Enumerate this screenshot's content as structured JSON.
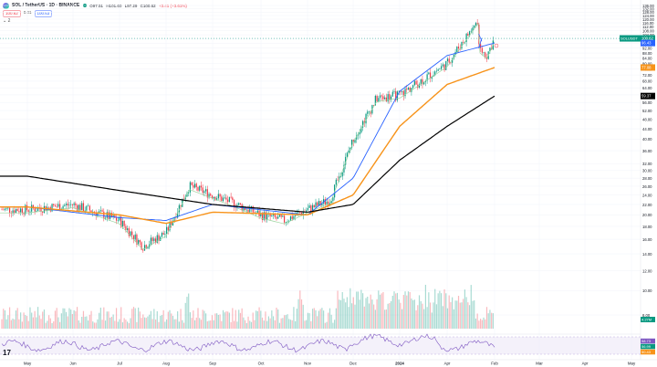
{
  "header": {
    "symbol_title": "SOL / TetherUS · 1D · BINANCE",
    "ohlc": [
      "O97.51",
      "H101.60",
      "L97.29",
      "C100.62",
      "+3.41 (+3.61%)"
    ],
    "sell_price": "100.62",
    "spread": "0.01",
    "buy_price": "100.63",
    "collapse_label": "⌄ 2"
  },
  "colors": {
    "up": "#089981",
    "down": "#f23645",
    "ema_short": "#9cd4a0",
    "ema_mid": "#2962ff",
    "ema_long": "#f7931a",
    "ema_200": "#000000",
    "wedge": "#2962ff",
    "rsi": "#7e57c2",
    "rsi_band": "#ede7f6"
  },
  "icons": {
    "tv_logo": "tradingview-logo-icon",
    "settings": "gear-icon"
  },
  "chart_data": {
    "type": "candlestick",
    "title": "SOL / TetherUS · 1D · BINANCE",
    "y_axis": {
      "scale": "log",
      "ticks": [
        8.0,
        10.0,
        12.0,
        14.0,
        16.0,
        18.0,
        20.0,
        22.0,
        24.0,
        26.0,
        28.0,
        30.0,
        32.0,
        36.0,
        40.0,
        44.0,
        48.0,
        52.0,
        56.0,
        60.0,
        64.0,
        68.0,
        72.0,
        76.0,
        80.0,
        84.0,
        88.0,
        92.0,
        96.0,
        100.0,
        104.0,
        108.0,
        112.0,
        116.0,
        120.0,
        124.0,
        128.0,
        132.0,
        136.0
      ],
      "tick_labels": [
        "8.00",
        "10.00",
        "12.00",
        "14.00",
        "16.00",
        "18.00",
        "20.00",
        "22.00",
        "24.00",
        "26.00",
        "28.00",
        "30.00",
        "32.00",
        "36.00",
        "40.00",
        "44.00",
        "48.00",
        "52.00",
        "56.00",
        "60.00",
        "64.00",
        "68.00",
        "72.00",
        "76.00",
        "80.00",
        "84.00",
        "88.00",
        "92.00",
        "96.00",
        "100.00",
        "104.00",
        "108.00",
        "112.00",
        "116.00",
        "120.00",
        "124.00",
        "128.00",
        "132.00",
        "136.00"
      ],
      "range": [
        8,
        136
      ]
    },
    "x_axis": {
      "tick_labels": [
        "Apr",
        "May",
        "Jun",
        "Jul",
        "Aug",
        "Sep",
        "Oct",
        "Nov",
        "Dec",
        "2024",
        "Feb",
        "Mar",
        "Apr",
        "May"
      ]
    },
    "price_labels": [
      {
        "name": "SOLUSDT",
        "value": "100.62",
        "sub": "11:59:19",
        "color": "#089981"
      },
      {
        "name": "ema_mid",
        "value": "96.43",
        "color": "#2962ff"
      },
      {
        "name": "ema_short",
        "value": "92.??",
        "color": "#9cd4a0"
      },
      {
        "name": "ema_long",
        "value": "77.08",
        "color": "#f7931a"
      },
      {
        "name": "ema_200",
        "value": "59.37",
        "color": "#000000"
      }
    ],
    "series_price_anchors": {
      "description": "approximate daily close path",
      "points": [
        [
          "Apr",
          21
        ],
        [
          "May",
          22
        ],
        [
          "Jun",
          19
        ],
        [
          "Jun15",
          15
        ],
        [
          "Jul",
          17
        ],
        [
          "Jul15",
          26
        ],
        [
          "Aug",
          24
        ],
        [
          "Aug15",
          22
        ],
        [
          "Sep",
          20
        ],
        [
          "Sep15",
          19
        ],
        [
          "Oct",
          21
        ],
        [
          "Oct15",
          23
        ],
        [
          "Nov",
          40
        ],
        [
          "Nov15",
          58
        ],
        [
          "Dec",
          60
        ],
        [
          "Dec15",
          80
        ],
        [
          "Dec25",
          120
        ],
        [
          "2024",
          104
        ],
        [
          "Jan15",
          98
        ],
        [
          "Jan25",
          86
        ],
        [
          "Feb",
          100.62
        ]
      ]
    },
    "ema_200_anchors": [
      [
        "Apr",
        28.5
      ],
      [
        "Jun",
        25
      ],
      [
        "Aug",
        22
      ],
      [
        "Oct",
        20.5
      ],
      [
        "Nov",
        22
      ],
      [
        "Dec",
        33
      ],
      [
        "2024",
        45
      ],
      [
        "Feb",
        59.37
      ]
    ],
    "ema_long_anchors": [
      [
        "Apr",
        21.5
      ],
      [
        "Jun",
        20
      ],
      [
        "Jul",
        18.5
      ],
      [
        "Aug",
        20.5
      ],
      [
        "Oct",
        20
      ],
      [
        "Nov",
        24
      ],
      [
        "Dec",
        45
      ],
      [
        "2024",
        66
      ],
      [
        "Feb",
        77.08
      ]
    ],
    "ema_mid_anchors": [
      [
        "Apr",
        21.5
      ],
      [
        "Jun",
        19.5
      ],
      [
        "Jul",
        19
      ],
      [
        "Aug",
        22
      ],
      [
        "Oct",
        20
      ],
      [
        "Nov",
        28
      ],
      [
        "Dec",
        62
      ],
      [
        "2024",
        86
      ],
      [
        "Feb",
        96.43
      ]
    ],
    "volume_label": "4.27M",
    "rsi": {
      "values_label": [
        "58.73",
        "56.99",
        "50.43"
      ],
      "levels": [
        70,
        30
      ]
    }
  }
}
